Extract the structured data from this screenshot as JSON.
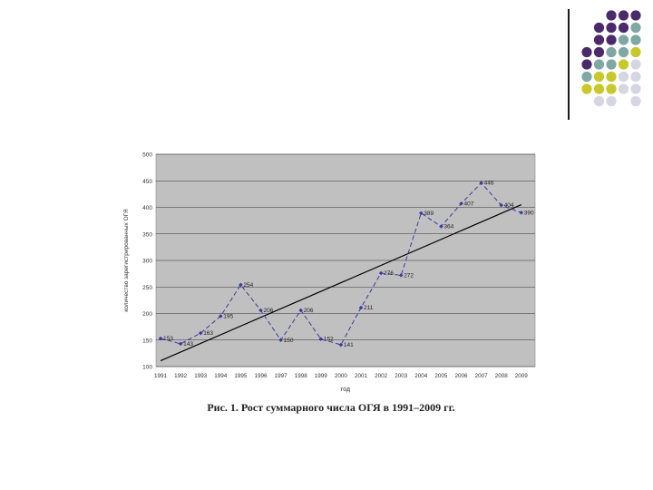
{
  "decor": {
    "dot_colors": {
      "purple": "#4b2a6b",
      "teal": "#7fa7a3",
      "olive": "#c8c82a",
      "grey": "#d6d6e3"
    },
    "dot_pattern": [
      "..PPP",
      ".PPPT",
      ".PPTT",
      "PPTTO",
      "PTTOG",
      "TOOGG",
      "OOOGG",
      ".GG.G"
    ]
  },
  "chart_data": {
    "type": "line",
    "title": "",
    "xlabel": "год",
    "ylabel": "количество зарегистрированных ОГЯ",
    "x": [
      "1991",
      "1992",
      "1993",
      "1994",
      "1995",
      "1996",
      "1997",
      "1998",
      "1999",
      "2000",
      "2001",
      "2002",
      "2003",
      "2004",
      "2005",
      "2006",
      "2007",
      "2008",
      "2009"
    ],
    "series": [
      {
        "values": [
          153,
          143,
          163,
          195,
          254,
          206,
          150,
          206,
          152,
          141,
          211,
          276,
          272,
          389,
          364,
          407,
          446,
          404,
          390
        ]
      }
    ],
    "trendline": {
      "from": 111,
      "to": 405
    },
    "ylim": [
      100,
      500
    ],
    "yticks": [
      "100",
      "150",
      "200",
      "250",
      "300",
      "350",
      "400",
      "450",
      "500"
    ],
    "grid": true,
    "colors": {
      "line": "#3a3aa0",
      "plot_bg": "#c0c0c0",
      "trend": "#000000"
    }
  },
  "caption": "Рис. 1. Рост суммарного числа ОГЯ в 1991–2009 гг."
}
